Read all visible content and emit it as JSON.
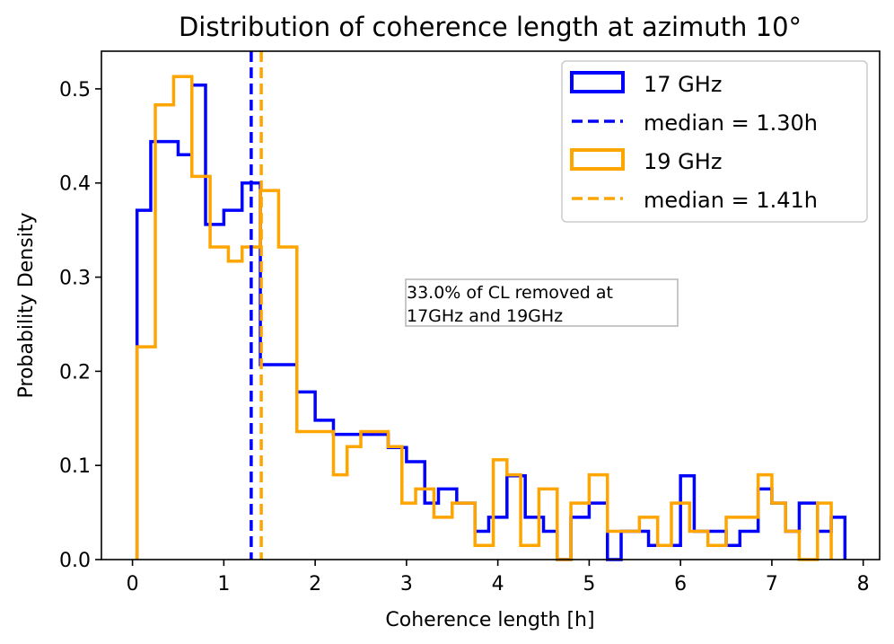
{
  "chart_data": {
    "type": "histogram",
    "title": "Distribution of coherence length at azimuth 10°",
    "xlabel": "Coherence length [h]",
    "ylabel": "Probability Density",
    "xlim": [
      -0.34,
      8.18
    ],
    "ylim": [
      0,
      0.54
    ],
    "xticks": [
      0,
      1,
      2,
      3,
      4,
      5,
      6,
      7,
      8
    ],
    "xtick_labels": [
      "0",
      "1",
      "2",
      "3",
      "4",
      "5",
      "6",
      "7",
      "8"
    ],
    "yticks": [
      0.0,
      0.1,
      0.2,
      0.3,
      0.4,
      0.5
    ],
    "ytick_labels": [
      "0.0",
      "0.1",
      "0.2",
      "0.3",
      "0.4",
      "0.5"
    ],
    "series": [
      {
        "name": "17 GHz",
        "color": "#0000ff",
        "edges": [
          0.05,
          0.2,
          0.5,
          0.65,
          0.8,
          1.0,
          1.2,
          1.4,
          1.6,
          1.8,
          2.0,
          2.2,
          2.5,
          2.6,
          2.8,
          3.0,
          3.2,
          3.35,
          3.55,
          3.75,
          3.9,
          4.1,
          4.3,
          4.5,
          4.65,
          4.8,
          5.0,
          5.2,
          5.35,
          5.5,
          5.65,
          5.8,
          6.0,
          6.15,
          6.3,
          6.5,
          6.65,
          6.85,
          7.0,
          7.15,
          7.3,
          7.5,
          7.65,
          7.8
        ],
        "values": [
          0.371,
          0.444,
          0.43,
          0.504,
          0.356,
          0.371,
          0.4,
          0.207,
          0.207,
          0.178,
          0.148,
          0.133,
          0.133,
          0.133,
          0.119,
          0.104,
          0.06,
          0.075,
          0.06,
          0.03,
          0.045,
          0.089,
          0.045,
          0.03,
          0.0,
          0.045,
          0.06,
          0.0,
          0.03,
          0.03,
          0.015,
          0.015,
          0.089,
          0.03,
          0.03,
          0.015,
          0.03,
          0.075,
          0.06,
          0.03,
          0.06,
          0.03,
          0.045
        ]
      },
      {
        "name": "19 GHz",
        "color": "#ffa500",
        "edges": [
          0.05,
          0.25,
          0.45,
          0.65,
          0.85,
          1.05,
          1.2,
          1.4,
          1.6,
          1.8,
          2.0,
          2.2,
          2.35,
          2.5,
          2.65,
          2.8,
          2.95,
          3.1,
          3.3,
          3.5,
          3.75,
          3.95,
          4.1,
          4.25,
          4.45,
          4.65,
          4.8,
          5.0,
          5.2,
          5.35,
          5.55,
          5.75,
          5.9,
          6.1,
          6.3,
          6.5,
          6.7,
          6.85,
          7.0,
          7.15,
          7.3,
          7.5,
          7.65
        ],
        "values": [
          0.226,
          0.483,
          0.513,
          0.407,
          0.332,
          0.317,
          0.332,
          0.392,
          0.332,
          0.136,
          0.136,
          0.09,
          0.12,
          0.136,
          0.136,
          0.12,
          0.06,
          0.075,
          0.045,
          0.06,
          0.015,
          0.106,
          0.09,
          0.015,
          0.075,
          0.0,
          0.06,
          0.09,
          0.03,
          0.03,
          0.045,
          0.015,
          0.06,
          0.03,
          0.015,
          0.045,
          0.045,
          0.09,
          0.06,
          0.03,
          0.0,
          0.06
        ]
      }
    ],
    "medians": [
      {
        "label": "median = 1.30h",
        "value": 1.3,
        "color": "#0000ff"
      },
      {
        "label": "median = 1.41h",
        "value": 1.41,
        "color": "#ffa500"
      }
    ],
    "legend": {
      "placement": "top-right",
      "entries": [
        {
          "label": "17 GHz",
          "kind": "patch",
          "color": "#0000ff"
        },
        {
          "label": "median = 1.30h",
          "kind": "dashed-line",
          "color": "#0000ff"
        },
        {
          "label": "19 GHz",
          "kind": "patch",
          "color": "#ffa500"
        },
        {
          "label": "median = 1.41h",
          "kind": "dashed-line",
          "color": "#ffa500"
        }
      ]
    },
    "annotation": {
      "lines": [
        "33.0% of CL removed at",
        "17GHz and 19GHz"
      ]
    },
    "grid": false
  }
}
